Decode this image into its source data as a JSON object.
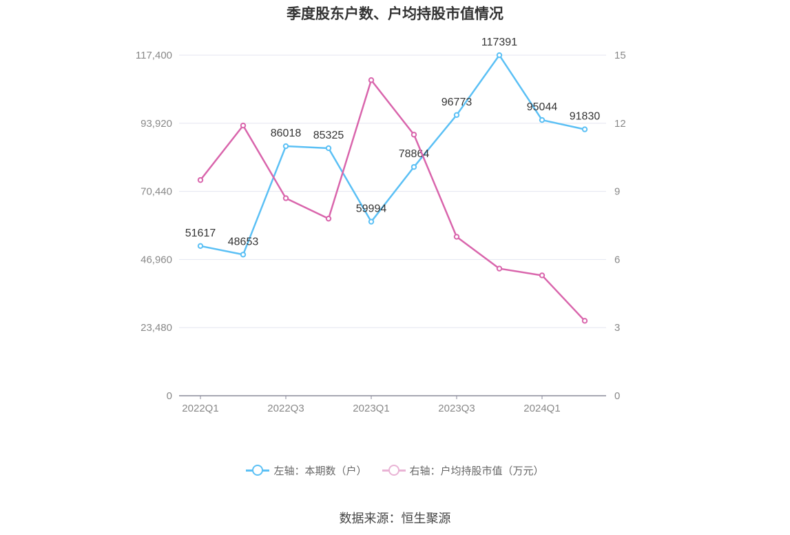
{
  "title": "季度股东户数、户均持股市值情况",
  "source": "数据来源：恒生聚源",
  "legend": {
    "left_label": "左轴：本期数（户）",
    "right_label": "右轴：户均持股市值（万元）"
  },
  "colors": {
    "left_series": "#5bc0f5",
    "right_series": "#d965ac",
    "grid": "#e3e6f0",
    "axis": "#888a99",
    "tick_text": "#888888",
    "label_text": "#333333"
  },
  "chart_data": {
    "type": "line",
    "x": [
      "2022Q1",
      "2022Q2",
      "2022Q3",
      "2022Q4",
      "2023Q1",
      "2023Q2",
      "2023Q3",
      "2023Q4",
      "2024Q1",
      "2024Q2"
    ],
    "x_tick_labels": [
      "2022Q1",
      "2022Q3",
      "2023Q1",
      "2023Q3",
      "2024Q1"
    ],
    "left_axis": {
      "ylim": [
        0,
        117400
      ],
      "ticks": [
        0,
        23480,
        46960,
        70440,
        93920,
        117400
      ],
      "tick_labels": [
        "0",
        "23,480",
        "46,960",
        "70,440",
        "93,920",
        "117,400"
      ]
    },
    "right_axis": {
      "ylim": [
        0,
        15
      ],
      "ticks": [
        0,
        3,
        6,
        9,
        12,
        15
      ],
      "tick_labels": [
        "0",
        "3",
        "6",
        "9",
        "12",
        "15"
      ]
    },
    "series": [
      {
        "name": "左轴：本期数（户）",
        "axis": "left",
        "values": [
          51617,
          48653,
          86018,
          85325,
          59994,
          78864,
          96773,
          117391,
          95044,
          91830
        ],
        "data_labels": [
          "51617",
          "48653",
          "86018",
          "85325",
          "59994",
          "78864",
          "96773",
          "117391",
          "95044",
          "91830"
        ]
      },
      {
        "name": "右轴：户均持股市值（万元）",
        "axis": "right",
        "values": [
          9.5,
          11.9,
          8.7,
          7.8,
          13.9,
          11.5,
          7.0,
          5.6,
          5.3,
          3.3
        ]
      }
    ],
    "grid": true,
    "legend_position": "bottom"
  }
}
